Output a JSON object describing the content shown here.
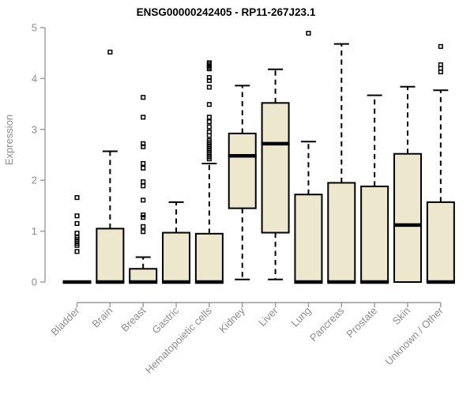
{
  "chart_data": {
    "type": "box",
    "title": "ENSG00000242405 - RP11-267J23.1",
    "xlabel": "",
    "ylabel": "Expression",
    "ylim": [
      0,
      5
    ],
    "yticks": [
      0,
      1,
      2,
      3,
      4,
      5
    ],
    "grid": false,
    "legend": false,
    "style": {
      "box_fill": "#EDE8CD",
      "box_stroke": "#000000",
      "axis_color": "#9A9A9A",
      "label_color": "#8C8C8C",
      "title_color": "#000000",
      "background": "#FFFFFF"
    },
    "categories": [
      "Bladder",
      "Brain",
      "Breast",
      "Gastric",
      "Hematopoietic cells",
      "Kidney",
      "Liver",
      "Lung",
      "Pancreas",
      "Prostate",
      "Skin",
      "Unknown / Other"
    ],
    "boxes": [
      {
        "category": "Bladder",
        "whisker_low": 0,
        "q1": 0,
        "median": 0,
        "q3": 0,
        "whisker_high": 0,
        "outliers": [
          0.6,
          0.72,
          0.76,
          0.8,
          0.84,
          0.88,
          0.96,
          1.15,
          1.3,
          1.66
        ]
      },
      {
        "category": "Brain",
        "whisker_low": 0,
        "q1": 0,
        "median": 0,
        "q3": 1.05,
        "whisker_high": 2.57,
        "outliers": [
          4.52
        ]
      },
      {
        "category": "Breast",
        "whisker_low": 0,
        "q1": 0,
        "median": 0,
        "q3": 0.26,
        "whisker_high": 0.49,
        "outliers": [
          0.99,
          1.09,
          1.27,
          1.32,
          1.61,
          1.89,
          1.97,
          2.24,
          2.33,
          2.66,
          2.72,
          3.24,
          3.63
        ]
      },
      {
        "category": "Gastric",
        "whisker_low": 0,
        "q1": 0,
        "median": 0,
        "q3": 0.97,
        "whisker_high": 1.57,
        "outliers": []
      },
      {
        "category": "Hematopoietic cells",
        "whisker_low": 0,
        "q1": 0,
        "median": 0,
        "q3": 0.95,
        "whisker_high": 2.33,
        "outliers": [
          2.42,
          2.46,
          2.5,
          2.54,
          2.58,
          2.62,
          2.66,
          2.7,
          2.74,
          2.78,
          2.88,
          2.95,
          3.05,
          3.15,
          3.24,
          3.49,
          3.83,
          3.96,
          4.02,
          4.19,
          4.22,
          4.25,
          4.28,
          4.31
        ]
      },
      {
        "category": "Kidney",
        "whisker_low": 0.05,
        "q1": 1.45,
        "median": 2.48,
        "q3": 2.92,
        "whisker_high": 3.86,
        "outliers": []
      },
      {
        "category": "Liver",
        "whisker_low": 0.05,
        "q1": 0.97,
        "median": 2.72,
        "q3": 3.52,
        "whisker_high": 4.18,
        "outliers": []
      },
      {
        "category": "Lung",
        "whisker_low": 0,
        "q1": 0,
        "median": 0,
        "q3": 1.72,
        "whisker_high": 2.76,
        "outliers": [
          4.89
        ]
      },
      {
        "category": "Pancreas",
        "whisker_low": 0,
        "q1": 0,
        "median": 0,
        "q3": 1.95,
        "whisker_high": 4.68,
        "outliers": []
      },
      {
        "category": "Prostate",
        "whisker_low": 0,
        "q1": 0,
        "median": 0,
        "q3": 1.88,
        "whisker_high": 3.67,
        "outliers": []
      },
      {
        "category": "Skin",
        "whisker_low": 0,
        "q1": 0,
        "median": 1.12,
        "q3": 2.52,
        "whisker_high": 3.84,
        "outliers": []
      },
      {
        "category": "Unknown / Other",
        "whisker_low": 0,
        "q1": 0,
        "median": 0,
        "q3": 1.57,
        "whisker_high": 3.77,
        "outliers": [
          4.13,
          4.2,
          4.27,
          4.63
        ]
      }
    ]
  }
}
